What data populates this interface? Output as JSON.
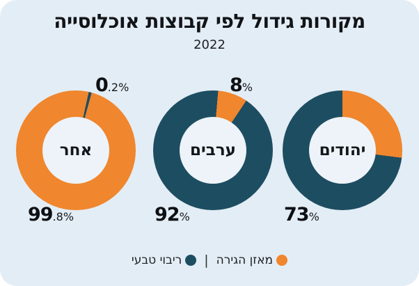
{
  "colors": {
    "natural_increase": "#1d4d61",
    "migration_balance": "#f0862d",
    "background": "#e3edf5",
    "hole": "#edf3f9",
    "text": "#121417"
  },
  "chart_data": {
    "type": "pie",
    "variant": "three-donut-multiples",
    "title": "מקורות גידול לפי קבוצות אוכלוסייה",
    "subtitle": "2022",
    "legend_position": "bottom",
    "series_names": {
      "natural_increase": "ריבוי טבעי",
      "migration_balance": "מאזן הגירה"
    },
    "donuts": [
      {
        "label": "אחר",
        "natural_increase_pct": 0.2,
        "migration_balance_pct": 99.8,
        "top_label": {
          "big": "0",
          "small": ".2%"
        },
        "bottom_label": {
          "big": "99",
          "small": ".8%"
        },
        "start_angle_deg": 12.5
      },
      {
        "label": "ערבים",
        "natural_increase_pct": 92,
        "migration_balance_pct": 8,
        "top_label": {
          "big": "8",
          "small": "%"
        },
        "bottom_label": {
          "big": "92",
          "small": "%"
        },
        "start_angle_deg": 5
      },
      {
        "label": "יהודים",
        "natural_increase_pct": 73,
        "migration_balance_pct": 27,
        "bottom_label": {
          "big": "73",
          "small": "%"
        },
        "start_angle_deg": 0
      }
    ]
  },
  "legend": {
    "items": [
      {
        "label": "מאזן הגירה",
        "color_key": "migration_balance"
      },
      {
        "label": "ריבוי טבעי",
        "color_key": "natural_increase"
      }
    ],
    "separator": "|"
  }
}
